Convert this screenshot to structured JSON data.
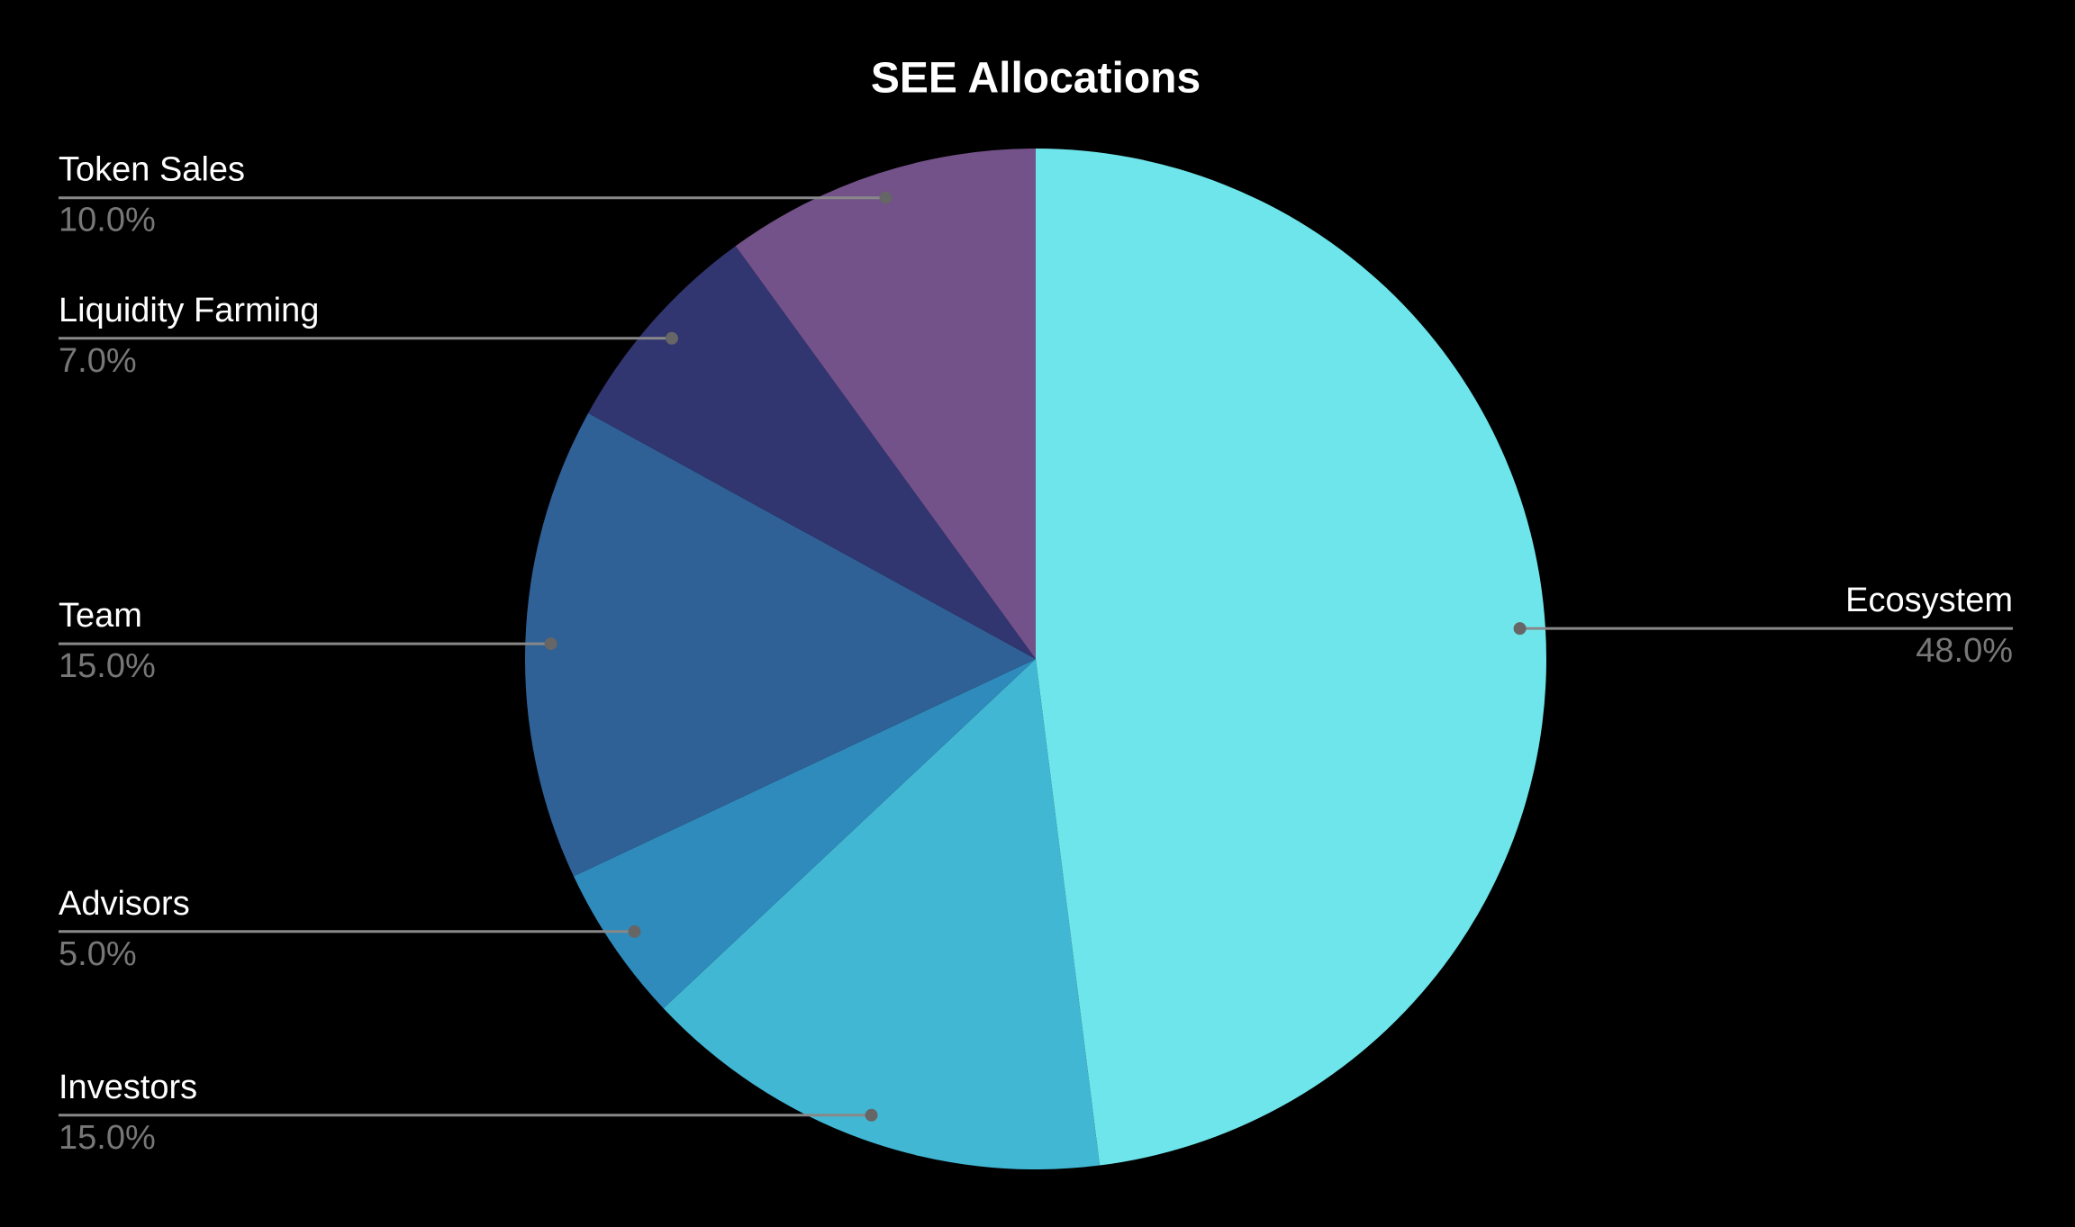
{
  "chart_data": {
    "type": "pie",
    "title": "SEE Allocations",
    "categories": [
      "Ecosystem",
      "Investors",
      "Advisors",
      "Team",
      "Liquidity Farming",
      "Token Sales"
    ],
    "values": [
      48,
      15,
      5,
      15,
      7,
      10
    ],
    "value_labels": [
      "48.0%",
      "15.0%",
      "5.0%",
      "15.0%",
      "7.0%",
      "10.0%"
    ],
    "colors": [
      "#6ee5ea",
      "#42b7d4",
      "#2f8bbb",
      "#2f6096",
      "#313570",
      "#735189"
    ]
  }
}
